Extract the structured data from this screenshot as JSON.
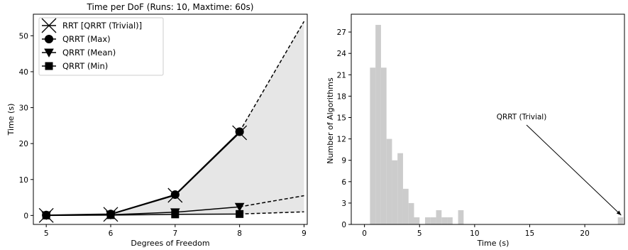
{
  "chart_data": [
    {
      "type": "line",
      "title": "Time per DoF (Runs: 10, Maxtime: 60s)",
      "xlabel": "Degrees of Freedom",
      "ylabel": "Time (s)",
      "x": [
        5,
        6,
        7,
        8
      ],
      "x_extrapolated": 9,
      "xticks": [
        5,
        6,
        7,
        8,
        9
      ],
      "yticks": [
        0,
        10,
        20,
        30,
        40,
        50
      ],
      "xlim": [
        4.8,
        9.05
      ],
      "ylim": [
        -2.5,
        56
      ],
      "grid": false,
      "legend_position": "top-left",
      "series": [
        {
          "name": "RRT [QRRT (Trivial)]",
          "marker": "x",
          "values": [
            0.0,
            0.3,
            5.6,
            23.0
          ],
          "extrapolated_at_9": null
        },
        {
          "name": "QRRT (Max)",
          "marker": "circle",
          "values": [
            0.1,
            0.4,
            5.8,
            23.3
          ],
          "extrapolated_at_9": 54.0
        },
        {
          "name": "QRRT (Mean)",
          "marker": "triangle-down",
          "values": [
            0.05,
            0.2,
            0.9,
            2.4
          ],
          "extrapolated_at_9": 5.5
        },
        {
          "name": "QRRT (Min)",
          "marker": "square",
          "values": [
            0.0,
            0.1,
            0.3,
            0.4
          ],
          "extrapolated_at_9": 1.0
        }
      ],
      "shaded_region": "between QRRT (Min) and QRRT (Max)",
      "colors": {
        "line": "#000000",
        "fill": "#e6e6e6"
      }
    },
    {
      "type": "bar",
      "title": "",
      "xlabel": "Time (s)",
      "ylabel": "Number of Algorithms",
      "bin_width": 0.5,
      "xlim": [
        -1.2,
        23.6
      ],
      "ylim": [
        0,
        29.5
      ],
      "xticks": [
        0,
        5,
        10,
        15,
        20
      ],
      "yticks": [
        0,
        3,
        6,
        9,
        12,
        15,
        18,
        21,
        24,
        27
      ],
      "bins": [
        {
          "start": 0.5,
          "value": 22
        },
        {
          "start": 1.0,
          "value": 28
        },
        {
          "start": 1.5,
          "value": 22
        },
        {
          "start": 2.0,
          "value": 12
        },
        {
          "start": 2.5,
          "value": 9
        },
        {
          "start": 3.0,
          "value": 10
        },
        {
          "start": 3.5,
          "value": 5
        },
        {
          "start": 4.0,
          "value": 3
        },
        {
          "start": 4.5,
          "value": 1
        },
        {
          "start": 5.5,
          "value": 1
        },
        {
          "start": 6.0,
          "value": 1
        },
        {
          "start": 6.5,
          "value": 2
        },
        {
          "start": 7.0,
          "value": 1
        },
        {
          "start": 7.5,
          "value": 1
        },
        {
          "start": 8.5,
          "value": 2
        },
        {
          "start": 23.0,
          "value": 1
        }
      ],
      "annotation": {
        "text": "QRRT (Trivial)",
        "points_to": {
          "x": 23.3,
          "y": 1
        }
      },
      "colors": {
        "bar": "#cccccc"
      }
    }
  ]
}
